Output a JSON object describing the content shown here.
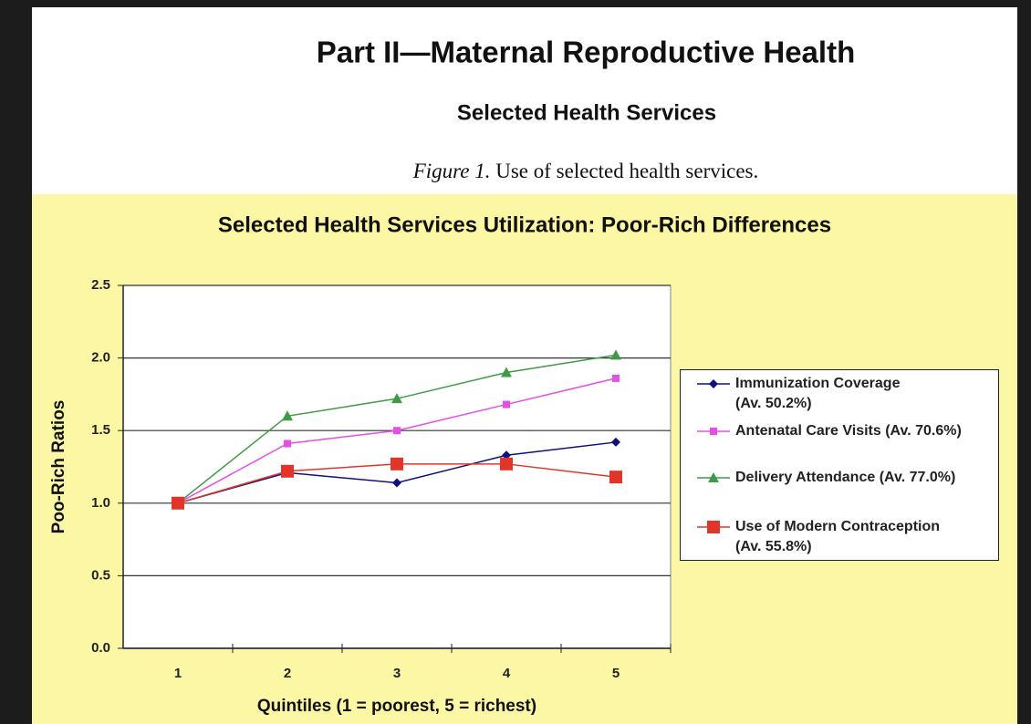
{
  "header": {
    "title": "Part II—Maternal Reproductive Health",
    "subtitle": "Selected Health Services",
    "caption_label": "Figure 1.",
    "caption_text": "Use of selected health services."
  },
  "chart_data": {
    "type": "line",
    "title": "Selected Health Services Utilization: Poor-Rich Differences",
    "x_label": "Quintiles (1 = poorest, 5 = richest)",
    "y_label": "Poo-Rich Ratios",
    "categories": [
      "1",
      "2",
      "3",
      "4",
      "5"
    ],
    "series": [
      {
        "name": "Immunization Coverage\n(Av. 50.2%)",
        "color": "#10107a",
        "marker": "diamond",
        "values": [
          1.0,
          1.21,
          1.14,
          1.33,
          1.42
        ]
      },
      {
        "name": "Antenatal Care Visits (Av. 70.6%)",
        "color": "#e64fe6",
        "marker": "square-small",
        "values": [
          1.0,
          1.41,
          1.5,
          1.68,
          1.86
        ]
      },
      {
        "name": "Delivery Attendance (Av. 77.0%)",
        "color": "#3f9a45",
        "marker": "triangle",
        "values": [
          1.0,
          1.6,
          1.72,
          1.9,
          2.02
        ]
      },
      {
        "name": "Use of Modern Contraception\n(Av. 55.8%)",
        "color": "#e2352a",
        "marker": "square",
        "values": [
          1.0,
          1.22,
          1.27,
          1.27,
          1.18
        ]
      }
    ],
    "ylim": [
      0,
      2.5
    ],
    "yticks": [
      {
        "value": 0,
        "label": "0.0"
      },
      {
        "value": 0.5,
        "label": "0.5"
      },
      {
        "value": 1,
        "label": "1.0"
      },
      {
        "value": 1.5,
        "label": "1.5"
      },
      {
        "value": 2,
        "label": "2.0"
      },
      {
        "value": 2.5,
        "label": "2.5"
      }
    ],
    "grid": true,
    "legend": "right"
  }
}
